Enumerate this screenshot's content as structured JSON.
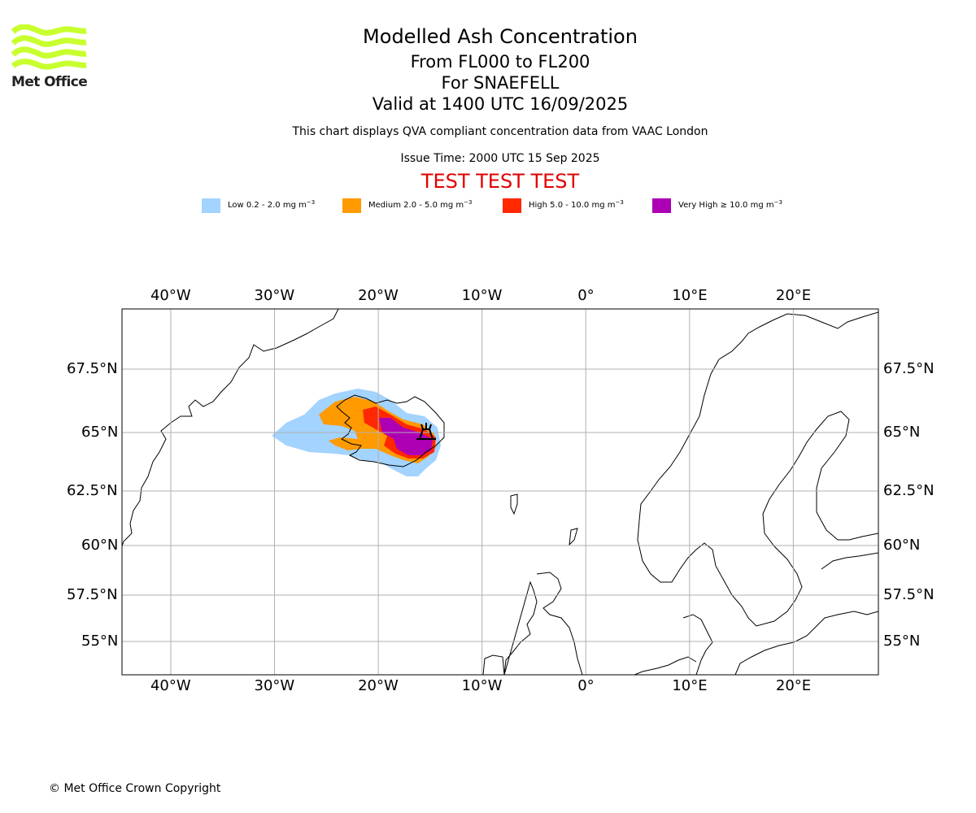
{
  "logo": {
    "text": "Met Office"
  },
  "titles": {
    "title": "Modelled Ash Concentration",
    "levels": "From FL000 to FL200",
    "volcano": "For SNAEFELL",
    "valid": "Valid at 1400 UTC 16/09/2025",
    "description": "This chart displays QVA compliant concentration data from VAAC London",
    "issue_time": "Issue Time: 2000 UTC 15 Sep 2025",
    "test_banner": "TEST TEST TEST"
  },
  "legend": [
    {
      "label": "Low 0.2 - 2.0 mg m",
      "color": "#a3d3ff"
    },
    {
      "label": "Medium 2.0 - 5.0 mg m",
      "color": "#ff9a00"
    },
    {
      "label": "High 5.0 - 10.0 mg m",
      "color": "#ff2800"
    },
    {
      "label": "Very High ≥ 10.0 mg m",
      "color": "#ad00b4"
    }
  ],
  "legend_unit_exponent": "−3",
  "map": {
    "lon_ticks": [
      "40°W",
      "30°W",
      "20°W",
      "10°W",
      "0°",
      "10°E",
      "20°E"
    ],
    "lat_ticks": [
      "67.5°N",
      "65°N",
      "62.5°N",
      "60°N",
      "57.5°N",
      "55°N"
    ],
    "lon_range": [
      -44.7,
      28.2
    ],
    "lat_range": [
      53.5,
      69.5
    ],
    "grid": true
  },
  "copyright": "© Met Office Crown Copyright",
  "colors": {
    "test_banner": "#e00000",
    "grid": "#b0b0b0",
    "logo": "#c8ff2e"
  }
}
